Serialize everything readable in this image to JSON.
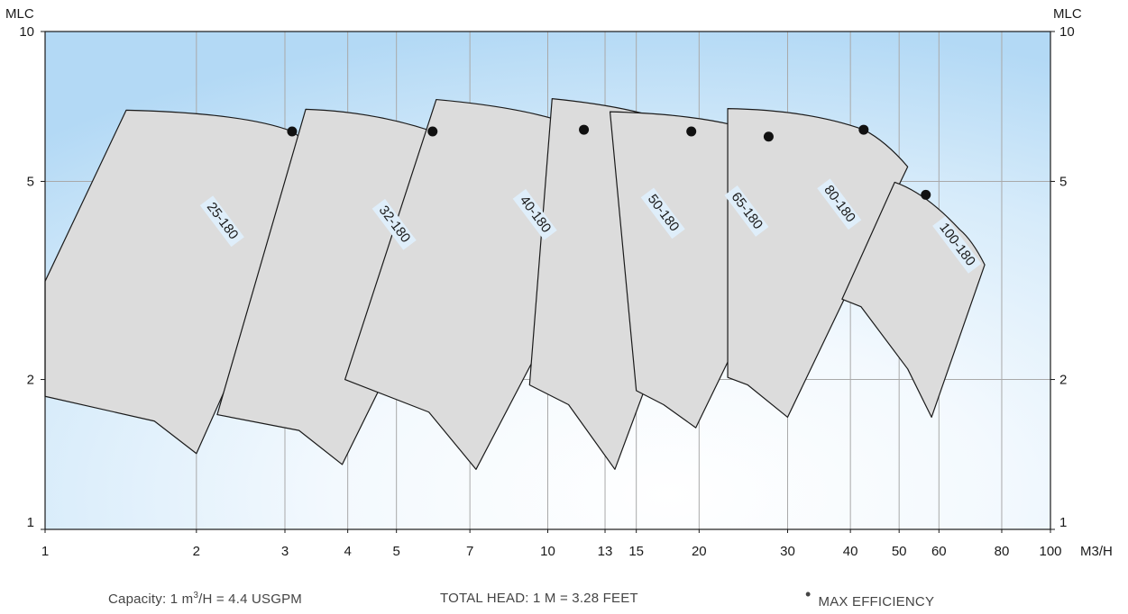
{
  "chart_data": {
    "type": "area",
    "title": "",
    "xlabel": "M3/H",
    "ylabel_left": "MLC",
    "ylabel_right": "MLC",
    "x_scale": "log",
    "y_scale": "log",
    "xlim": [
      1,
      100
    ],
    "ylim": [
      1,
      10
    ],
    "x_ticks": [
      1,
      2,
      3,
      4,
      5,
      7,
      10,
      13,
      15,
      20,
      30,
      40,
      50,
      60,
      80,
      100
    ],
    "y_ticks": [
      1,
      2,
      5,
      10
    ],
    "grid": true,
    "series": [
      {
        "name": "25-180",
        "max_efficiency": [
          3.1,
          6.3
        ],
        "polygon": [
          [
            1.45,
            6.95
          ],
          [
            2.5,
            6.8
          ],
          [
            3.1,
            6.3
          ],
          [
            3.6,
            5.35
          ],
          [
            2.0,
            1.42
          ],
          [
            1.65,
            1.65
          ],
          [
            1.0,
            1.85
          ],
          [
            1.0,
            3.15
          ]
        ]
      },
      {
        "name": "32-180",
        "max_efficiency": [
          5.9,
          6.3
        ],
        "polygon": [
          [
            3.3,
            6.98
          ],
          [
            4.5,
            6.85
          ],
          [
            5.9,
            6.3
          ],
          [
            7.5,
            5.15
          ],
          [
            3.9,
            1.35
          ],
          [
            3.2,
            1.58
          ],
          [
            2.2,
            1.7
          ]
        ]
      },
      {
        "name": "40-180",
        "max_efficiency": [
          11.8,
          6.35
        ],
        "polygon": [
          [
            6.0,
            7.3
          ],
          [
            9.5,
            6.95
          ],
          [
            11.8,
            6.35
          ],
          [
            14.8,
            5.3
          ],
          [
            7.2,
            1.32
          ],
          [
            5.8,
            1.72
          ],
          [
            3.95,
            2.0
          ]
        ]
      },
      {
        "name": "50-180",
        "max_efficiency": [
          19.3,
          6.3
        ],
        "polygon": [
          [
            10.2,
            7.33
          ],
          [
            16.0,
            6.95
          ],
          [
            19.3,
            6.3
          ],
          [
            23.0,
            5.5
          ],
          [
            13.6,
            1.32
          ],
          [
            11.0,
            1.78
          ],
          [
            9.2,
            1.95
          ]
        ]
      },
      {
        "name": "65-180",
        "max_efficiency": [
          27.5,
          6.15
        ],
        "polygon": [
          [
            13.3,
            6.9
          ],
          [
            22.0,
            6.75
          ],
          [
            27.5,
            6.15
          ],
          [
            36.0,
            5.6
          ],
          [
            19.7,
            1.6
          ],
          [
            17.0,
            1.78
          ],
          [
            15.0,
            1.9
          ]
        ]
      },
      {
        "name": "80-180",
        "max_efficiency": [
          42.5,
          6.35
        ],
        "polygon": [
          [
            22.8,
            7.0
          ],
          [
            33.0,
            6.9
          ],
          [
            42.5,
            6.35
          ],
          [
            52.0,
            5.35
          ],
          [
            30.0,
            1.68
          ],
          [
            25.0,
            1.95
          ],
          [
            22.8,
            2.02
          ]
        ]
      },
      {
        "name": "100-180",
        "max_efficiency": [
          56.5,
          4.7
        ],
        "polygon": [
          [
            49.0,
            4.98
          ],
          [
            56.5,
            4.7
          ],
          [
            66.0,
            4.0
          ],
          [
            74.0,
            3.4
          ],
          [
            58.0,
            1.68
          ],
          [
            52.0,
            2.1
          ],
          [
            42.0,
            2.8
          ],
          [
            38.5,
            2.9
          ]
        ]
      }
    ]
  },
  "footer": {
    "capacity_prefix": "Capacity: 1 m",
    "capacity_sup": "3",
    "capacity_suffix": "/H = 4.4 USGPM",
    "total_head": "TOTAL HEAD: 1 M = 3.28 FEET",
    "max_efficiency": "MAX EFFICIENCY",
    "max_efficiency_bullet": "•"
  }
}
